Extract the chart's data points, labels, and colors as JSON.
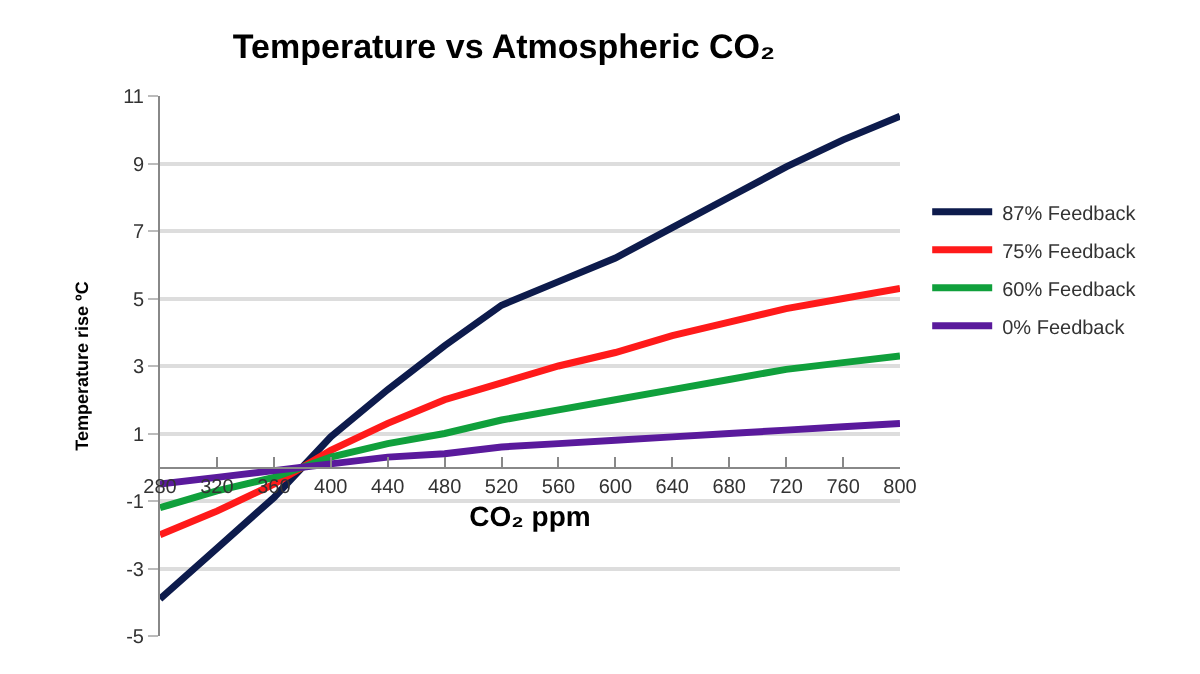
{
  "chart_data": {
    "type": "line",
    "title": "Temperature vs Atmospheric CO₂",
    "xlabel": "CO₂ ppm",
    "ylabel": "Temperature rise ºC",
    "x": [
      280,
      320,
      360,
      380,
      400,
      440,
      480,
      520,
      560,
      600,
      640,
      680,
      720,
      760,
      800
    ],
    "xlim": [
      280,
      800
    ],
    "xticks": [
      280,
      320,
      360,
      400,
      440,
      480,
      520,
      560,
      600,
      640,
      680,
      720,
      760,
      800
    ],
    "ylim": [
      -5,
      11
    ],
    "yticks": [
      -5,
      -3,
      -1,
      1,
      3,
      5,
      7,
      9,
      11
    ],
    "grid": "y",
    "legend": "right",
    "marker": "none",
    "line_style": "solid",
    "series": [
      {
        "name": "87% Feedback",
        "color": "#0d1b4c",
        "values": [
          -3.9,
          -2.4,
          -0.9,
          0,
          0.9,
          2.3,
          3.6,
          4.8,
          5.5,
          6.2,
          7.1,
          8.0,
          8.9,
          9.7,
          10.4
        ]
      },
      {
        "name": "75% Feedback",
        "color": "#ff1a1a",
        "values": [
          -2.0,
          -1.3,
          -0.5,
          0,
          0.5,
          1.3,
          2.0,
          2.5,
          3.0,
          3.4,
          3.9,
          4.3,
          4.7,
          5.0,
          5.3
        ]
      },
      {
        "name": "60% Feedback",
        "color": "#10a03c",
        "values": [
          -1.2,
          -0.7,
          -0.3,
          0,
          0.3,
          0.7,
          1.0,
          1.4,
          1.7,
          2.0,
          2.3,
          2.6,
          2.9,
          3.1,
          3.3
        ]
      },
      {
        "name": "0% Feedback",
        "color": "#5a1a9c",
        "values": [
          -0.5,
          -0.3,
          -0.1,
          0,
          0.1,
          0.3,
          0.4,
          0.6,
          0.7,
          0.8,
          0.9,
          1.0,
          1.1,
          1.2,
          1.3
        ]
      }
    ]
  }
}
